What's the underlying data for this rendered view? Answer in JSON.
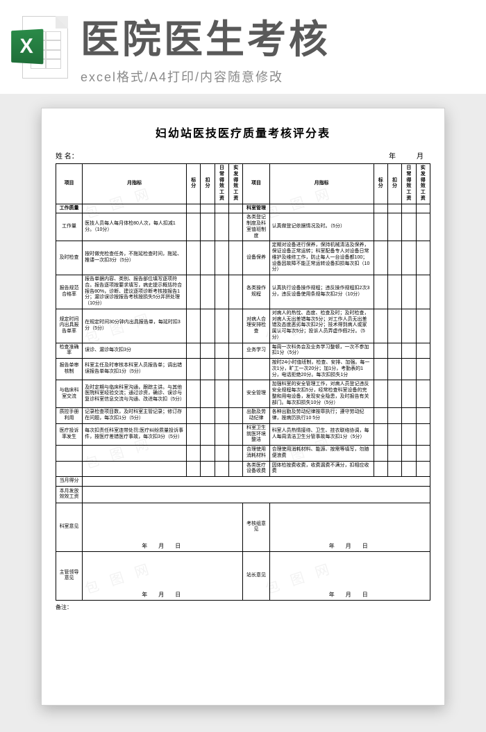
{
  "header": {
    "big_title": "医院医生考核",
    "subtitle": "excel格式/A4打印/内容随意修改",
    "icon_letter": "X"
  },
  "doc": {
    "title": "妇幼站医技医疗质量考核评分表",
    "name_label": "姓 名：",
    "year_month": "年　月",
    "col_project": "项目",
    "col_standard": "月指标",
    "col_score": "标分",
    "col_deduct": "扣分",
    "col_bonus1": "日常得效工资",
    "col_bonus2": "实发得效工资",
    "section_left": "工作质量",
    "section_right": "科室管理",
    "left_rows": [
      {
        "proj": "工作量",
        "std": "医技人员每人每月体检80人次，每人扣减1分。（10分）"
      },
      {
        "proj": "及时检查",
        "std": "按时做完检查任务，不拖延检查时间，拖延、推诿一次扣3分（5分）"
      },
      {
        "proj": "报告规范合格率",
        "std": "报告单据内容、类别、报告部位填写逐项符合。报告逐项按要求填写，病史提示概括符合报告80%，诊断、建议逐项诊断考核按报告1分；漏诊误诊按报告考核按损失5分并拼处理（10分）"
      },
      {
        "proj": "规定时间内出具报告单率",
        "std": "在规定时间30分钟内出具报告单，每延时扣3分（5分）"
      },
      {
        "proj": "检查准确率",
        "std": "误诊、漏诊每次扣3分"
      },
      {
        "proj": "报告单审核制",
        "std": "科室主任及时审核本科室人员报告单；调出错误报告单每次扣1分（5分）"
      },
      {
        "proj": "与临床科室交流",
        "std": "及时定期与临床科室沟通，跟踪主讲。与其他医院科室经验交流；通过诊资，确诊、误诊与复诊科室信息交流与沟通、改进每次扣（5分）"
      },
      {
        "proj": "质控手册利用",
        "std": "记录检查项目数，及时科室主管记录；修订存在问题，每次扣1分（5分）"
      },
      {
        "proj": "医疗投诉率发生",
        "std": "每次扣责任科室连带处罚;医疗纠纷质量投诉事件，按医疗差错医疗事故，每次扣3分（5分）"
      }
    ],
    "right_rows": [
      {
        "proj": "各类登记制度及科室值班制度",
        "std": "认真做登记依据情况及时。（5分）"
      },
      {
        "proj": "设备保养",
        "std": "定期对设备进行保养，保持机械清洁及保养，保证设备正常运转；科室配备专人对设备日常维护及维修工作，防止每人一台设备都100；设备因故障不能正常运转设备扣损每次扣（10分）"
      },
      {
        "proj": "各类操作规程",
        "std": "认真执行设备操作规程；违反操作规程扣2次3分，违反设备使用条规每次扣2分（10分）"
      },
      {
        "proj": "对病人合理安排检查",
        "std": "对病人的热忱、态度、检查及时；及时检查，对病人无出差错每次5分；对工作人员无出差错及态度恶劣每次扣2分；技术得到病人或家属认可每次5分；投诉人员弄虚作假2分。（5分）"
      },
      {
        "proj": "业务学习",
        "std": "每周一次科务会及业务学习整顿，一次不参加扣1分（5分）"
      },
      {
        "proj": "",
        "std": "按时24小时值班制，检查、安排、加强。每一次1分，旷工一次20分；加1分，考勤表的1分，电话拒绝20分。每次扣损失1分"
      },
      {
        "proj": "安全管理",
        "std": "加强科室的安全管理工作，对病人员登记违反安全规程每次扣5分，经常检查科室设备的完整和用电设备，发现安全隐患，及时报告有关部门。每次扣损失10分（5分）"
      },
      {
        "proj": "出勤及劳动纪律",
        "std": "各种出勤及劳动纪律按章执行；遵守劳动纪律，按病历执行10 5分"
      },
      {
        "proj": "科室卫生就医环境整洁",
        "std": "科室人员热情接待、卫生、挂衣联络协调，每人每周清洁卫生分管事故每次扣1分（5分）"
      },
      {
        "proj": "合理使用消耗材料",
        "std": "合理使用消耗材料、能源、按需等填写，勿随便浪费"
      },
      {
        "proj": "各类医疗设备收费",
        "std": "因体检按费收费，收费漏费不满分，扣相应收费"
      }
    ],
    "rows_bottom": [
      {
        "proj": "当月得分",
        "std": ""
      },
      {
        "proj": "本月发放效效工资",
        "std": ""
      }
    ],
    "sig_left1": "科室意见",
    "sig_right1": "考核组意见",
    "sig_left2": "主管领导意见",
    "sig_right2": "站长意见",
    "sig_date": "年　月　日",
    "note_label": "备注："
  },
  "watermark": "包 图 网"
}
